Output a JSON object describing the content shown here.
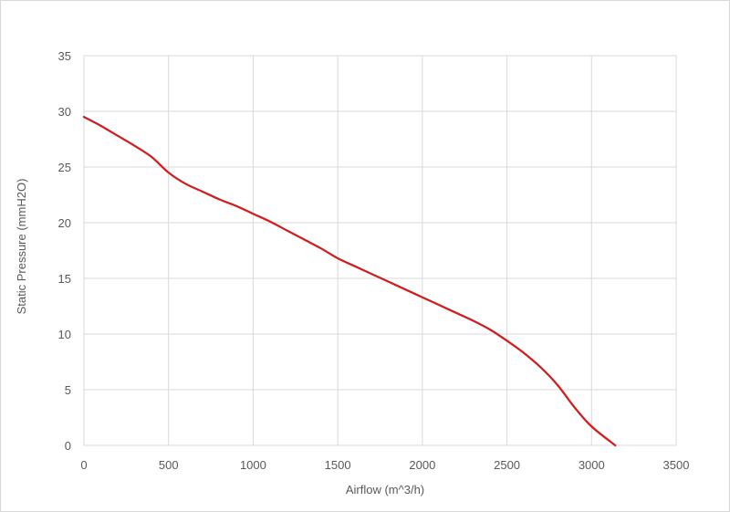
{
  "chart_data": {
    "type": "line",
    "title": "",
    "xlabel": "Airflow (m^3/h)",
    "ylabel": "Static Pressure (mmH2O)",
    "xlim": [
      0,
      3500
    ],
    "ylim": [
      0,
      35
    ],
    "xticks": [
      0,
      500,
      1000,
      1500,
      2000,
      2500,
      3000,
      3500
    ],
    "yticks": [
      0,
      5,
      10,
      15,
      20,
      25,
      30,
      35
    ],
    "grid": true,
    "legend": "none",
    "series": [
      {
        "color": "#cc1f1f",
        "points": [
          [
            0,
            29.5
          ],
          [
            100,
            28.7
          ],
          [
            200,
            27.8
          ],
          [
            300,
            26.9
          ],
          [
            400,
            25.9
          ],
          [
            500,
            24.5
          ],
          [
            600,
            23.5
          ],
          [
            700,
            22.8
          ],
          [
            800,
            22.1
          ],
          [
            900,
            21.5
          ],
          [
            1000,
            20.8
          ],
          [
            1100,
            20.1
          ],
          [
            1200,
            19.3
          ],
          [
            1300,
            18.5
          ],
          [
            1400,
            17.7
          ],
          [
            1500,
            16.8
          ],
          [
            1600,
            16.1
          ],
          [
            1700,
            15.4
          ],
          [
            1800,
            14.7
          ],
          [
            1900,
            14.0
          ],
          [
            2000,
            13.3
          ],
          [
            2100,
            12.6
          ],
          [
            2200,
            11.9
          ],
          [
            2300,
            11.2
          ],
          [
            2400,
            10.4
          ],
          [
            2500,
            9.4
          ],
          [
            2600,
            8.3
          ],
          [
            2700,
            7.0
          ],
          [
            2800,
            5.4
          ],
          [
            2900,
            3.4
          ],
          [
            3000,
            1.7
          ],
          [
            3140,
            0
          ]
        ]
      }
    ]
  }
}
